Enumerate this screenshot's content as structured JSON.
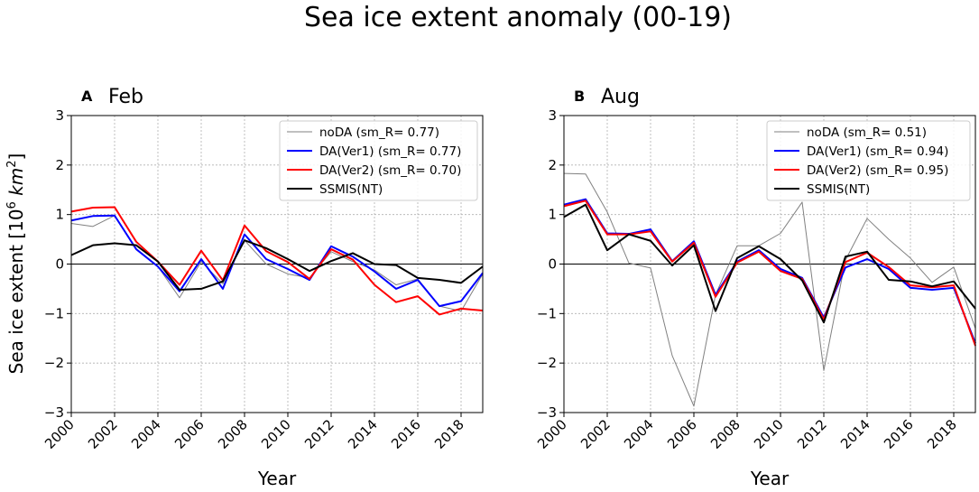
{
  "figure_title": "Sea ice extent anomaly (00-19)",
  "ylabel_prefix": "Sea ice extent [10",
  "ylabel_sup": "6",
  "ylabel_unit": " km",
  "ylabel_sup2": "2",
  "ylabel_suffix": "]",
  "colors": {
    "noDA": "#808080",
    "DA1": "#0000ff",
    "DA2": "#ff0000",
    "SSMIS": "#000000",
    "grid": "#b0b0b0"
  },
  "chart_data": [
    {
      "type": "line",
      "panel": "A",
      "title": "Feb",
      "xlabel": "Year",
      "ylabel": "Sea ice extent [10^6 km^2]",
      "xlim": [
        2000,
        2019
      ],
      "ylim": [
        -3,
        3
      ],
      "x": [
        2000,
        2001,
        2002,
        2003,
        2004,
        2005,
        2006,
        2007,
        2008,
        2009,
        2010,
        2011,
        2012,
        2013,
        2014,
        2015,
        2016,
        2017,
        2018,
        2019
      ],
      "xticks": [
        "2000",
        "2002",
        "2004",
        "2006",
        "2008",
        "2010",
        "2012",
        "2014",
        "2016",
        "2018"
      ],
      "yticks": [
        "3",
        "2",
        "1",
        "0",
        "−1",
        "−2",
        "−3"
      ],
      "legend_position": "top-right",
      "series": [
        {
          "key": "noDA",
          "name": "noDA (sm_R= 0.77)",
          "values": [
            0.82,
            0.76,
            0.98,
            0.3,
            -0.05,
            -0.68,
            0.05,
            -0.4,
            0.48,
            0.0,
            -0.2,
            -0.28,
            0.25,
            0.05,
            -0.12,
            -0.42,
            -0.3,
            -0.85,
            -0.95,
            -0.2
          ]
        },
        {
          "key": "DA1",
          "name": "DA(Ver1) (sm_R= 0.77)",
          "values": [
            0.88,
            0.97,
            0.98,
            0.3,
            -0.05,
            -0.55,
            0.1,
            -0.5,
            0.6,
            0.1,
            -0.1,
            -0.32,
            0.36,
            0.15,
            -0.15,
            -0.5,
            -0.32,
            -0.85,
            -0.75,
            -0.18
          ]
        },
        {
          "key": "DA2",
          "name": "DA(Ver2) (sm_R= 0.70)",
          "values": [
            1.06,
            1.14,
            1.15,
            0.45,
            0.05,
            -0.42,
            0.27,
            -0.33,
            0.78,
            0.26,
            0.04,
            -0.3,
            0.3,
            0.09,
            -0.42,
            -0.77,
            -0.65,
            -1.02,
            -0.9,
            -0.94
          ]
        },
        {
          "key": "SSMIS",
          "name": "SSMIS(NT)",
          "values": [
            0.18,
            0.38,
            0.42,
            0.38,
            0.05,
            -0.52,
            -0.5,
            -0.35,
            0.48,
            0.32,
            0.1,
            -0.14,
            0.06,
            0.22,
            0.0,
            -0.02,
            -0.28,
            -0.32,
            -0.38,
            -0.05
          ]
        }
      ]
    },
    {
      "type": "line",
      "panel": "B",
      "title": "Aug",
      "xlabel": "Year",
      "ylabel": "Sea ice extent [10^6 km^2]",
      "xlim": [
        2000,
        2019
      ],
      "ylim": [
        -3,
        3
      ],
      "x": [
        2000,
        2001,
        2002,
        2003,
        2004,
        2005,
        2006,
        2007,
        2008,
        2009,
        2010,
        2011,
        2012,
        2013,
        2014,
        2015,
        2016,
        2017,
        2018,
        2019
      ],
      "xticks": [
        "2000",
        "2002",
        "2004",
        "2006",
        "2008",
        "2010",
        "2012",
        "2014",
        "2016",
        "2018"
      ],
      "yticks": [
        "3",
        "2",
        "1",
        "0",
        "−1",
        "−2",
        "−3"
      ],
      "legend_position": "top-right",
      "series": [
        {
          "key": "noDA",
          "name": "noDA (sm_R= 0.51)",
          "values": [
            1.83,
            1.82,
            1.05,
            0.02,
            -0.08,
            -1.85,
            -2.87,
            -0.62,
            0.37,
            0.37,
            0.62,
            1.25,
            -2.15,
            0.08,
            0.92,
            0.5,
            0.12,
            -0.37,
            -0.06,
            -1.3
          ]
        },
        {
          "key": "DA1",
          "name": "DA(Ver1) (sm_R= 0.94)",
          "values": [
            1.2,
            1.31,
            0.62,
            0.61,
            0.7,
            0.06,
            0.46,
            -0.62,
            0.05,
            0.28,
            -0.1,
            -0.28,
            -1.08,
            -0.07,
            0.1,
            -0.1,
            -0.48,
            -0.52,
            -0.48,
            -1.6
          ]
        },
        {
          "key": "DA2",
          "name": "DA(Ver2) (sm_R= 0.95)",
          "values": [
            1.17,
            1.28,
            0.6,
            0.6,
            0.66,
            0.05,
            0.43,
            -0.66,
            0.03,
            0.25,
            -0.14,
            -0.3,
            -1.12,
            0.04,
            0.23,
            -0.06,
            -0.43,
            -0.47,
            -0.43,
            -1.65
          ]
        },
        {
          "key": "SSMIS",
          "name": "SSMIS(NT)",
          "values": [
            0.95,
            1.2,
            0.28,
            0.6,
            0.47,
            -0.03,
            0.38,
            -0.95,
            0.12,
            0.36,
            0.1,
            -0.33,
            -1.18,
            0.15,
            0.25,
            -0.32,
            -0.35,
            -0.45,
            -0.35,
            -0.9
          ]
        }
      ]
    }
  ]
}
